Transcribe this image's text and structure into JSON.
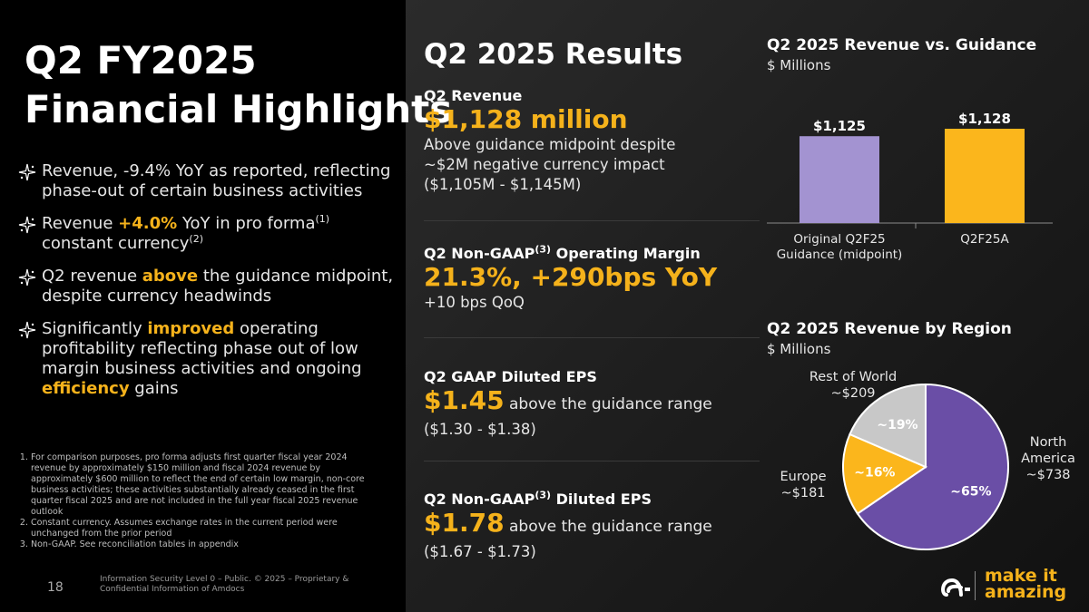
{
  "left": {
    "title_line1": "Q2 FY2025",
    "title_line2": "Financial Highlights",
    "bullets": [
      {
        "t1": "Revenue, -9.4% YoY as reported, reflecting phase-out of certain business activities"
      },
      {
        "t1": "Revenue ",
        "hl": "+4.0%",
        "t2": " YoY in pro forma",
        "sup1": "(1)",
        "t3": " constant currency",
        "sup2": "(2)"
      },
      {
        "t1": "Q2 revenue ",
        "hl": "above",
        "t2": " the guidance midpoint, despite currency headwinds"
      },
      {
        "t1": "Significantly  ",
        "hl": "improved",
        "t2": " operating profitability reflecting phase out of low margin business activities and ongoing ",
        "hl2": "efficiency",
        "t3": " gains"
      }
    ],
    "footnotes": [
      "For comparison purposes, pro forma adjusts first quarter fiscal year 2024 revenue by approximately $150 million and fiscal 2024 revenue by approximately $600 million to reflect the end of certain low margin, non-core business activities; these activities substantially already ceased in the first quarter fiscal 2025 and are not included in the full year fiscal 2025 revenue outlook",
      "Constant currency. Assumes exchange rates in the current period were unchanged from the prior period",
      "Non-GAAP. See reconciliation tables in appendix"
    ],
    "page_number": "18",
    "classification": "Information Security Level 0 – Public. © 2025 – Proprietary & Confidential Information of Amdocs"
  },
  "results": {
    "title": "Q2 2025 Results",
    "revenue": {
      "label": "Q2 Revenue",
      "value": "$1,128 million",
      "desc": "Above guidance midpoint despite ~$2M negative currency impact ($1,105M - $1,145M)"
    },
    "margin": {
      "label_pre": "Q2 Non-GAAP",
      "label_sup": "(3)",
      "label_post": " Operating Margin",
      "value": "21.3%, +290bps YoY",
      "desc": "+10 bps QoQ"
    },
    "gaap_eps": {
      "label": "Q2 GAAP Diluted EPS",
      "value": "$1.45",
      "value_rest": " above the guidance range",
      "desc": " ($1.30 - $1.38)"
    },
    "nongaap_eps": {
      "label_pre": "Q2 Non-GAAP",
      "label_sup": "(3)",
      "label_post": " Diluted EPS",
      "value": "$1.78",
      "value_rest": " above the guidance range",
      "desc": "($1.67 - $1.73)"
    }
  },
  "chart_data": [
    {
      "type": "bar",
      "title": "Q2 2025 Revenue vs. Guidance",
      "subtitle": "$ Millions",
      "categories": [
        "Original Q2F25 Guidance (midpoint)",
        "Q2F25A"
      ],
      "category_lines": [
        [
          "Original Q2F25",
          "Guidance (midpoint)"
        ],
        [
          "Q2F25A"
        ]
      ],
      "values": [
        1125,
        1128
      ],
      "data_labels": [
        "$1,125",
        "$1,128"
      ],
      "colors": [
        "#a393d1",
        "#fbb61c"
      ]
    },
    {
      "type": "pie",
      "title": "Q2 2025 Revenue by Region",
      "subtitle": "$ Millions",
      "slices": [
        {
          "name": "North America",
          "name_lines": [
            "North",
            "America"
          ],
          "value": 738,
          "value_label": "~$738",
          "percent_label": "~65%",
          "color": "#6a4ea6"
        },
        {
          "name": "Europe",
          "name_lines": [
            "Europe"
          ],
          "value": 181,
          "value_label": "~$181",
          "percent_label": "~16%",
          "color": "#fbb61c"
        },
        {
          "name": "Rest of World",
          "name_lines": [
            "Rest of World"
          ],
          "value": 209,
          "value_label": "~$209",
          "percent_label": "~19%",
          "color": "#c8c8c8"
        }
      ]
    }
  ],
  "brand": {
    "tagline_line1": "make it",
    "tagline_line2": "amazing",
    "accent": "#f5b21b"
  }
}
